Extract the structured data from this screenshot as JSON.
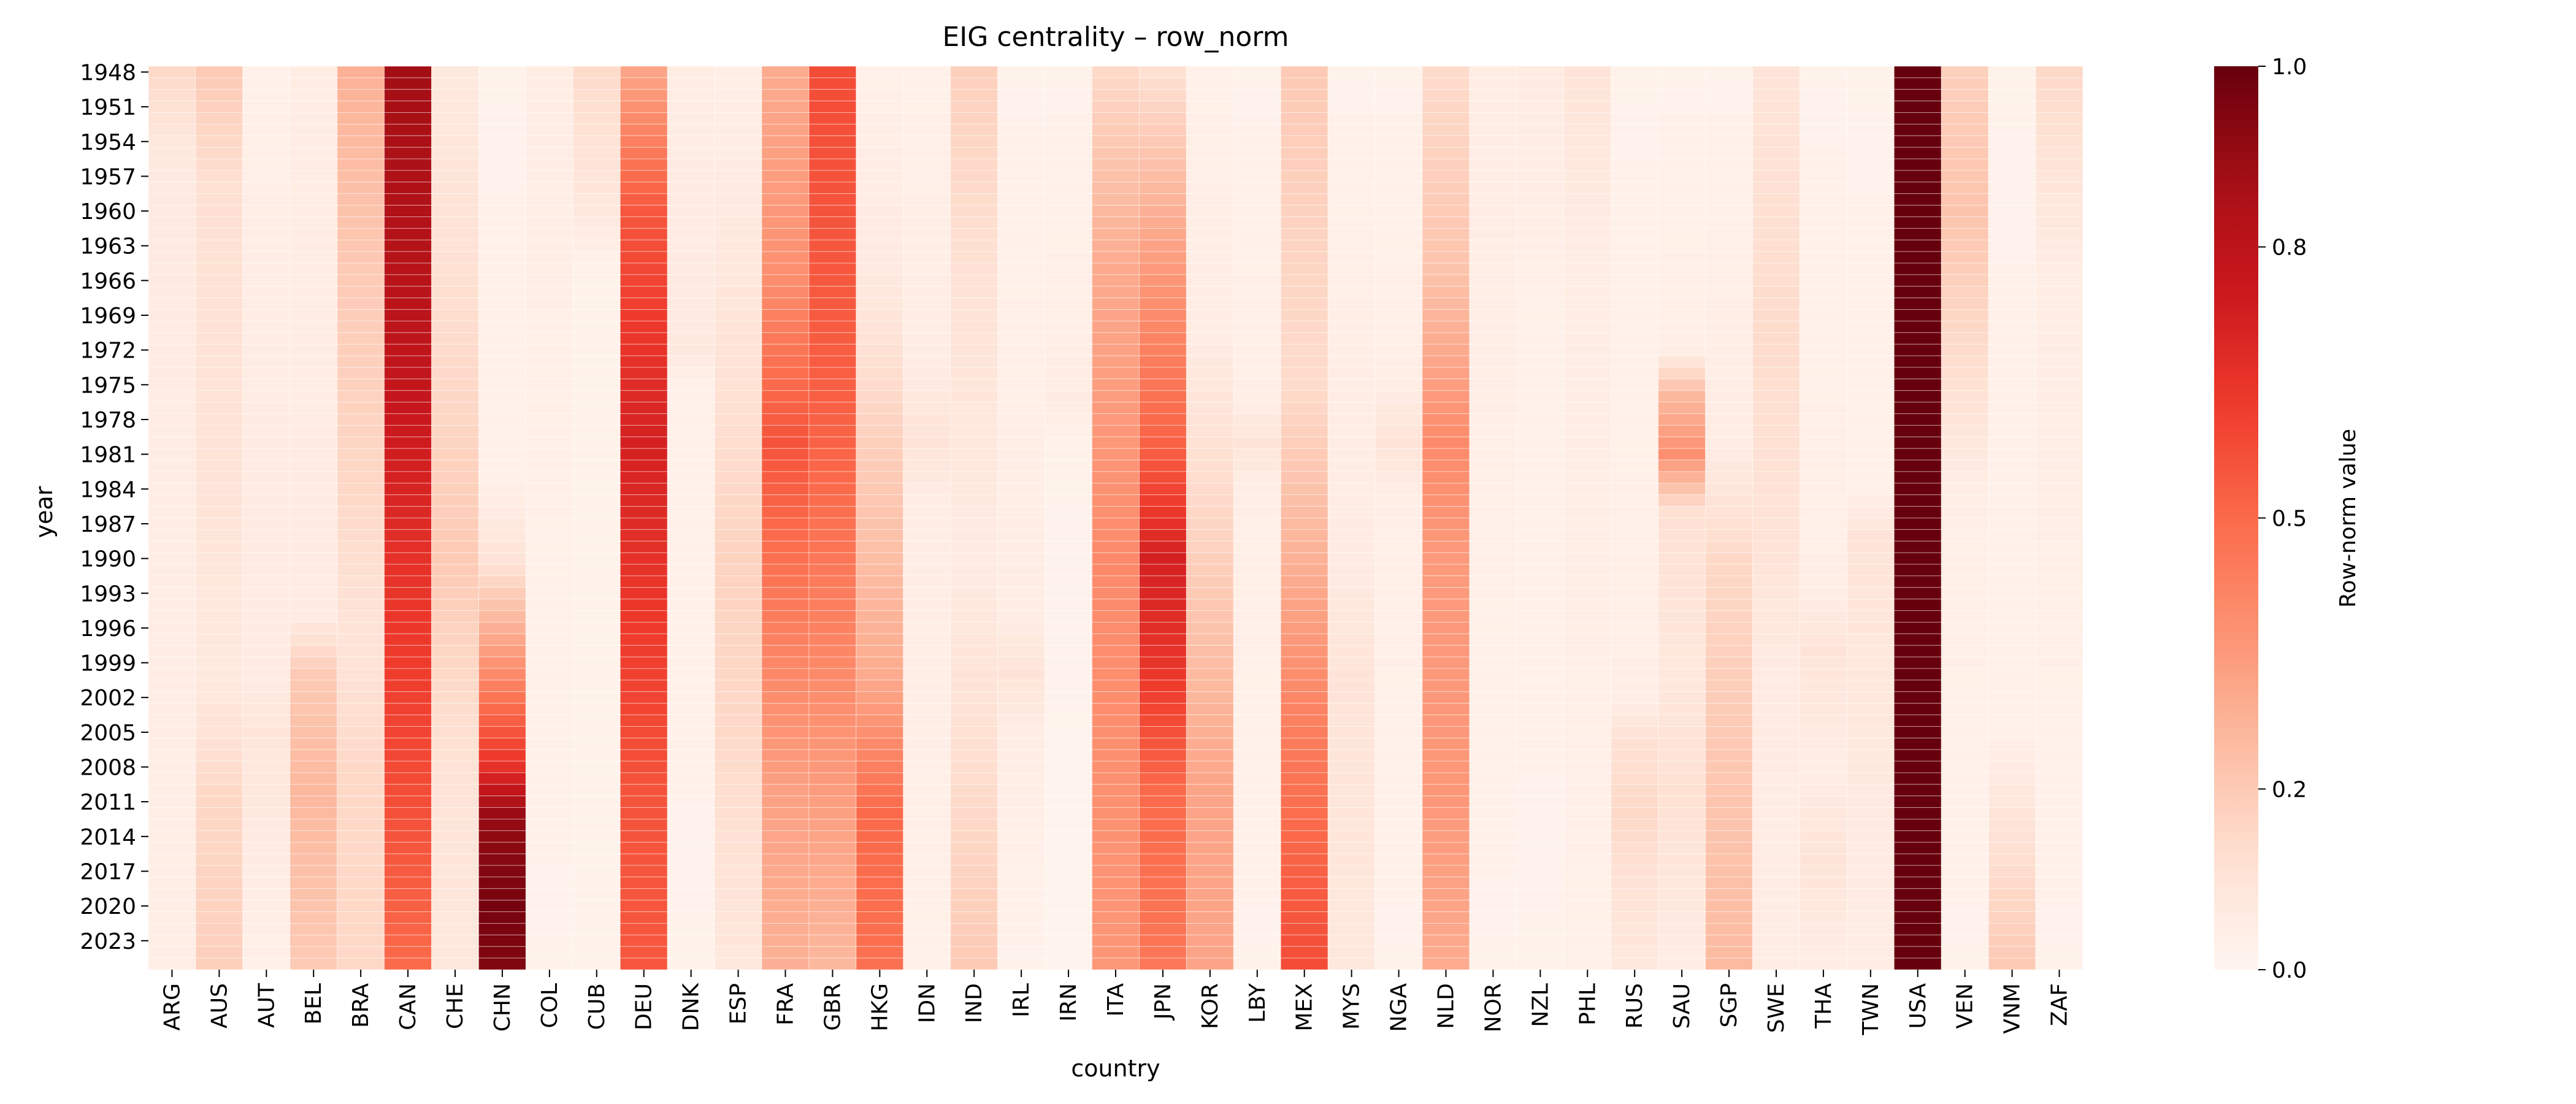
{
  "chart_data": {
    "type": "heatmap",
    "title": "EIG centrality – row_norm",
    "xlabel": "country",
    "ylabel": "year",
    "colorbar_label": "Row-norm value",
    "colorbar_ticks": [
      "0.0",
      "0.2",
      "0.5",
      "0.8",
      "1.0"
    ],
    "colorbar_tick_values": [
      0.0,
      0.2,
      0.5,
      0.8,
      1.0
    ],
    "vlim": [
      0,
      1
    ],
    "colormap": [
      "#fff5f0",
      "#fee0d2",
      "#fcbba1",
      "#fc9272",
      "#fb6a4a",
      "#ef3b2c",
      "#cb181d",
      "#a50f15",
      "#67000d"
    ],
    "countries": [
      "ARG",
      "AUS",
      "AUT",
      "BEL",
      "BRA",
      "CAN",
      "CHE",
      "CHN",
      "COL",
      "CUB",
      "DEU",
      "DNK",
      "ESP",
      "FRA",
      "GBR",
      "HKG",
      "IDN",
      "IND",
      "IRL",
      "IRN",
      "ITA",
      "JPN",
      "KOR",
      "LBY",
      "MEX",
      "MYS",
      "NGA",
      "NLD",
      "NOR",
      "NZL",
      "PHL",
      "RUS",
      "SAU",
      "SGP",
      "SWE",
      "THA",
      "TWN",
      "USA",
      "VEN",
      "VNM",
      "ZAF"
    ],
    "year_start": 1948,
    "year_end": 2025,
    "year_tick_labels": [
      "1948",
      "1951",
      "1954",
      "1957",
      "1960",
      "1963",
      "1966",
      "1969",
      "1972",
      "1975",
      "1978",
      "1981",
      "1984",
      "1987",
      "1990",
      "1993",
      "1996",
      "1999",
      "2002",
      "2005",
      "2008",
      "2011",
      "2014",
      "2017",
      "2020",
      "2023"
    ],
    "series_keyframes": {
      "ARG": [
        [
          1948,
          0.15
        ],
        [
          1955,
          0.07
        ],
        [
          1985,
          0.05
        ],
        [
          2025,
          0.04
        ]
      ],
      "AUS": [
        [
          1948,
          0.2
        ],
        [
          1958,
          0.12
        ],
        [
          1985,
          0.1
        ],
        [
          2000,
          0.07
        ],
        [
          2010,
          0.15
        ],
        [
          2025,
          0.18
        ]
      ],
      "AUT": [
        [
          1948,
          0.03
        ],
        [
          1980,
          0.06
        ],
        [
          2000,
          0.06
        ],
        [
          2005,
          0.09
        ],
        [
          2025,
          0.03
        ]
      ],
      "BEL": [
        [
          1948,
          0.05
        ],
        [
          1995,
          0.06
        ],
        [
          2000,
          0.2
        ],
        [
          2010,
          0.26
        ],
        [
          2025,
          0.2
        ]
      ],
      "BRA": [
        [
          1948,
          0.28
        ],
        [
          1965,
          0.2
        ],
        [
          1985,
          0.15
        ],
        [
          1997,
          0.1
        ],
        [
          2008,
          0.15
        ],
        [
          2025,
          0.15
        ]
      ],
      "CAN": [
        [
          1948,
          0.88
        ],
        [
          1975,
          0.78
        ],
        [
          1990,
          0.66
        ],
        [
          2010,
          0.58
        ],
        [
          2025,
          0.5
        ]
      ],
      "CHE": [
        [
          1948,
          0.07
        ],
        [
          1975,
          0.15
        ],
        [
          1990,
          0.2
        ],
        [
          2010,
          0.1
        ],
        [
          2025,
          0.08
        ]
      ],
      "CHN": [
        [
          1948,
          0.02
        ],
        [
          1983,
          0.03
        ],
        [
          1990,
          0.1
        ],
        [
          2000,
          0.4
        ],
        [
          2008,
          0.66
        ],
        [
          2012,
          0.9
        ],
        [
          2020,
          0.97
        ],
        [
          2025,
          0.95
        ]
      ],
      "COL": [
        [
          1948,
          0.05
        ],
        [
          1965,
          0.04
        ],
        [
          2025,
          0.02
        ]
      ],
      "CUB": [
        [
          1948,
          0.14
        ],
        [
          1960,
          0.08
        ],
        [
          1965,
          0.02
        ],
        [
          2025,
          0.02
        ]
      ],
      "DEU": [
        [
          1948,
          0.32
        ],
        [
          1960,
          0.55
        ],
        [
          1980,
          0.72
        ],
        [
          1990,
          0.66
        ],
        [
          2010,
          0.56
        ],
        [
          2025,
          0.55
        ]
      ],
      "DNK": [
        [
          1948,
          0.05
        ],
        [
          1972,
          0.07
        ],
        [
          1975,
          0.03
        ],
        [
          2025,
          0.02
        ]
      ],
      "ESP": [
        [
          1948,
          0.04
        ],
        [
          1965,
          0.08
        ],
        [
          1990,
          0.17
        ],
        [
          2005,
          0.15
        ],
        [
          2025,
          0.08
        ]
      ],
      "FRA": [
        [
          1948,
          0.3
        ],
        [
          1965,
          0.38
        ],
        [
          1980,
          0.56
        ],
        [
          1990,
          0.48
        ],
        [
          2010,
          0.33
        ],
        [
          2025,
          0.28
        ]
      ],
      "GBR": [
        [
          1948,
          0.58
        ],
        [
          1960,
          0.56
        ],
        [
          1980,
          0.52
        ],
        [
          2000,
          0.4
        ],
        [
          2025,
          0.26
        ]
      ],
      "HKG": [
        [
          1948,
          0.03
        ],
        [
          1966,
          0.07
        ],
        [
          1980,
          0.18
        ],
        [
          2000,
          0.3
        ],
        [
          2012,
          0.5
        ],
        [
          2025,
          0.48
        ]
      ],
      "IDN": [
        [
          1948,
          0.03
        ],
        [
          1972,
          0.05
        ],
        [
          1980,
          0.1
        ],
        [
          1985,
          0.05
        ],
        [
          2025,
          0.03
        ]
      ],
      "IND": [
        [
          1948,
          0.18
        ],
        [
          1970,
          0.1
        ],
        [
          1990,
          0.06
        ],
        [
          2010,
          0.14
        ],
        [
          2025,
          0.2
        ]
      ],
      "IRL": [
        [
          1948,
          0.02
        ],
        [
          1995,
          0.05
        ],
        [
          2000,
          0.1
        ],
        [
          2005,
          0.05
        ],
        [
          2025,
          0.02
        ]
      ],
      "IRN": [
        [
          1948,
          0.02
        ],
        [
          1972,
          0.04
        ],
        [
          1976,
          0.06
        ],
        [
          1980,
          0.02
        ],
        [
          2025,
          0.01
        ]
      ],
      "ITA": [
        [
          1948,
          0.15
        ],
        [
          1965,
          0.3
        ],
        [
          1990,
          0.4
        ],
        [
          2010,
          0.38
        ],
        [
          2025,
          0.36
        ]
      ],
      "JPN": [
        [
          1948,
          0.12
        ],
        [
          1965,
          0.35
        ],
        [
          1980,
          0.52
        ],
        [
          1990,
          0.72
        ],
        [
          2000,
          0.64
        ],
        [
          2010,
          0.5
        ],
        [
          2025,
          0.46
        ]
      ],
      "KOR": [
        [
          1948,
          0.03
        ],
        [
          1970,
          0.05
        ],
        [
          1990,
          0.18
        ],
        [
          2010,
          0.32
        ],
        [
          2025,
          0.32
        ]
      ],
      "LBY": [
        [
          1948,
          0.02
        ],
        [
          1976,
          0.04
        ],
        [
          1980,
          0.1
        ],
        [
          1984,
          0.04
        ],
        [
          2025,
          0.02
        ]
      ],
      "MEX": [
        [
          1948,
          0.2
        ],
        [
          1975,
          0.14
        ],
        [
          1990,
          0.28
        ],
        [
          2005,
          0.44
        ],
        [
          2025,
          0.58
        ]
      ],
      "MYS": [
        [
          1948,
          0.02
        ],
        [
          1990,
          0.06
        ],
        [
          2000,
          0.1
        ],
        [
          2025,
          0.08
        ]
      ],
      "NGA": [
        [
          1948,
          0.02
        ],
        [
          1974,
          0.04
        ],
        [
          1980,
          0.1
        ],
        [
          1985,
          0.04
        ],
        [
          2025,
          0.02
        ]
      ],
      "NLD": [
        [
          1948,
          0.14
        ],
        [
          1965,
          0.22
        ],
        [
          1980,
          0.4
        ],
        [
          1990,
          0.35
        ],
        [
          2010,
          0.36
        ],
        [
          2025,
          0.3
        ]
      ],
      "NOR": [
        [
          1948,
          0.05
        ],
        [
          1975,
          0.04
        ],
        [
          2025,
          0.02
        ]
      ],
      "NZL": [
        [
          1948,
          0.06
        ],
        [
          1970,
          0.03
        ],
        [
          2025,
          0.02
        ]
      ],
      "PHL": [
        [
          1948,
          0.1
        ],
        [
          1965,
          0.05
        ],
        [
          2025,
          0.03
        ]
      ],
      "RUS": [
        [
          1948,
          0.02
        ],
        [
          2002,
          0.04
        ],
        [
          2006,
          0.12
        ],
        [
          2012,
          0.15
        ],
        [
          2020,
          0.1
        ],
        [
          2025,
          0.08
        ]
      ],
      "SAU": [
        [
          1948,
          0.02
        ],
        [
          1972,
          0.04
        ],
        [
          1976,
          0.26
        ],
        [
          1981,
          0.38
        ],
        [
          1986,
          0.12
        ],
        [
          2000,
          0.08
        ],
        [
          2010,
          0.12
        ],
        [
          2025,
          0.05
        ]
      ],
      "SGP": [
        [
          1948,
          0.02
        ],
        [
          1980,
          0.05
        ],
        [
          1990,
          0.15
        ],
        [
          2005,
          0.2
        ],
        [
          2025,
          0.25
        ]
      ],
      "SWE": [
        [
          1948,
          0.1
        ],
        [
          1970,
          0.14
        ],
        [
          1990,
          0.1
        ],
        [
          2000,
          0.06
        ],
        [
          2025,
          0.05
        ]
      ],
      "THA": [
        [
          1948,
          0.02
        ],
        [
          1992,
          0.04
        ],
        [
          1998,
          0.1
        ],
        [
          2008,
          0.05
        ],
        [
          2016,
          0.1
        ],
        [
          2025,
          0.05
        ]
      ],
      "TWN": [
        [
          1948,
          0.02
        ],
        [
          1984,
          0.03
        ],
        [
          1988,
          0.1
        ],
        [
          2000,
          0.08
        ],
        [
          2025,
          0.05
        ]
      ],
      "USA": [
        [
          1948,
          1.0
        ],
        [
          2025,
          1.0
        ]
      ],
      "VEN": [
        [
          1948,
          0.18
        ],
        [
          1960,
          0.22
        ],
        [
          1975,
          0.12
        ],
        [
          1985,
          0.04
        ],
        [
          2025,
          0.02
        ]
      ],
      "VNM": [
        [
          1948,
          0.02
        ],
        [
          2005,
          0.03
        ],
        [
          2015,
          0.12
        ],
        [
          2025,
          0.2
        ]
      ],
      "ZAF": [
        [
          1948,
          0.15
        ],
        [
          1960,
          0.08
        ],
        [
          1966,
          0.05
        ],
        [
          2025,
          0.02
        ]
      ]
    }
  }
}
